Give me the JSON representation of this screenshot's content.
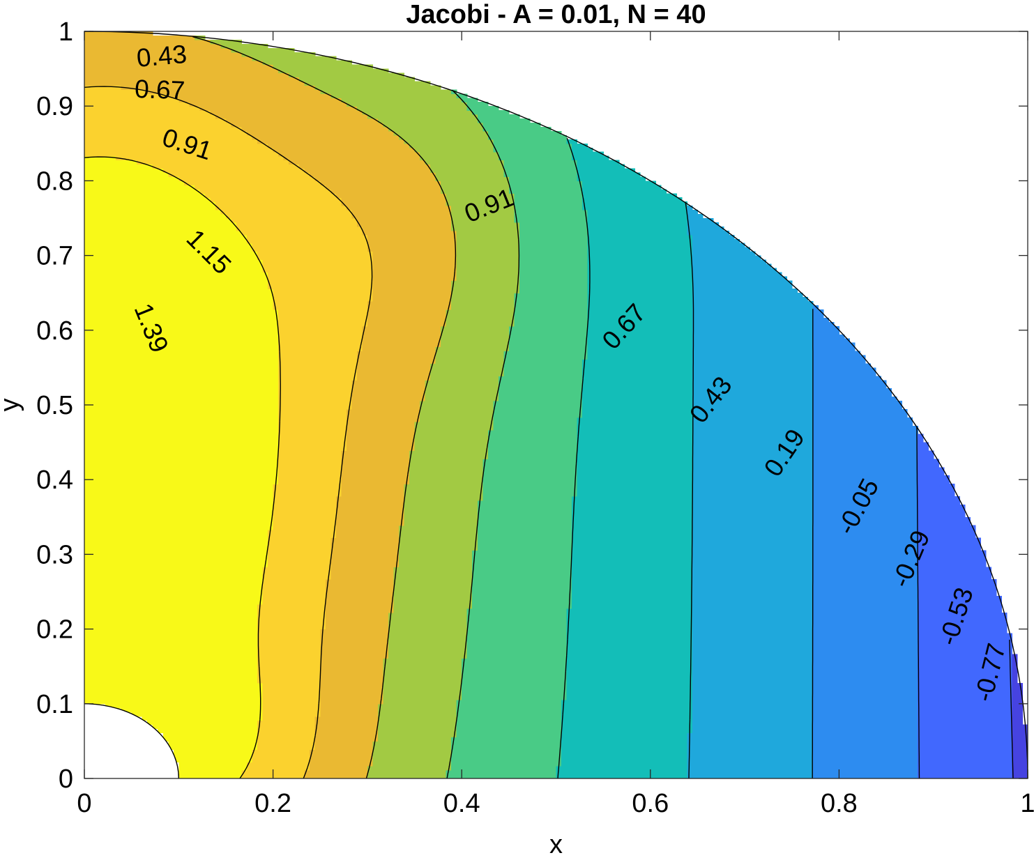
{
  "chart_data": {
    "type": "contour",
    "title": "Jacobi - A = 0.01, N = 40",
    "xlabel": "x",
    "ylabel": "y",
    "xlim": [
      0,
      1
    ],
    "ylim": [
      0,
      1
    ],
    "xticks": [
      {
        "value": 0,
        "label": "0"
      },
      {
        "value": 0.2,
        "label": "0.2"
      },
      {
        "value": 0.4,
        "label": "0.4"
      },
      {
        "value": 0.6,
        "label": "0.6"
      },
      {
        "value": 0.8,
        "label": "0.8"
      },
      {
        "value": 1,
        "label": "1"
      }
    ],
    "yticks": [
      {
        "value": 0,
        "label": "0"
      },
      {
        "value": 0.1,
        "label": "0.1"
      },
      {
        "value": 0.2,
        "label": "0.2"
      },
      {
        "value": 0.3,
        "label": "0.3"
      },
      {
        "value": 0.4,
        "label": "0.4"
      },
      {
        "value": 0.5,
        "label": "0.5"
      },
      {
        "value": 0.6,
        "label": "0.6"
      },
      {
        "value": 0.7,
        "label": "0.7"
      },
      {
        "value": 0.8,
        "label": "0.8"
      },
      {
        "value": 0.9,
        "label": "0.9"
      },
      {
        "value": 1,
        "label": "1"
      }
    ],
    "domain": {
      "shape": "annular quarter disk",
      "inner_radius": 0.1,
      "outer_radius": 1.0
    },
    "colormap": "parula",
    "levels": [
      -0.77,
      -0.53,
      -0.29,
      -0.05,
      0.19,
      0.43,
      0.67,
      0.91,
      1.15,
      1.39
    ],
    "level_colors": [
      {
        "min": -1.01,
        "max": -0.77,
        "color": "#3E26A8"
      },
      {
        "min": -0.77,
        "max": -0.53,
        "color": "#4643E1"
      },
      {
        "min": -0.53,
        "max": -0.29,
        "color": "#4168FE"
      },
      {
        "min": -0.29,
        "max": -0.05,
        "color": "#2D8CF0"
      },
      {
        "min": -0.05,
        "max": 0.19,
        "color": "#1FA8DC"
      },
      {
        "min": 0.19,
        "max": 0.43,
        "color": "#13BEB8"
      },
      {
        "min": 0.43,
        "max": 0.67,
        "color": "#49CB86"
      },
      {
        "min": 0.67,
        "max": 0.91,
        "color": "#A2CA43"
      },
      {
        "min": 0.91,
        "max": 1.15,
        "color": "#EAB932"
      },
      {
        "min": 1.15,
        "max": 1.39,
        "color": "#FBD22E"
      },
      {
        "min": 1.39,
        "max": 1.63,
        "color": "#F8F918"
      }
    ],
    "contour_labels": [
      {
        "text": "0.43",
        "x": 0.082,
        "y": 0.967,
        "rotation": -5
      },
      {
        "text": "0.67",
        "x": 0.08,
        "y": 0.922,
        "rotation": 2
      },
      {
        "text": "0.91",
        "x": 0.109,
        "y": 0.849,
        "rotation": 18
      },
      {
        "text": "0.91",
        "x": 0.429,
        "y": 0.767,
        "rotation": -22
      },
      {
        "text": "1.15",
        "x": 0.132,
        "y": 0.705,
        "rotation": 45
      },
      {
        "text": "1.39",
        "x": 0.071,
        "y": 0.603,
        "rotation": 68
      },
      {
        "text": "0.67",
        "x": 0.572,
        "y": 0.605,
        "rotation": -48
      },
      {
        "text": "0.43",
        "x": 0.664,
        "y": 0.507,
        "rotation": -52
      },
      {
        "text": "0.19",
        "x": 0.742,
        "y": 0.436,
        "rotation": -56
      },
      {
        "text": "-0.05",
        "x": 0.82,
        "y": 0.364,
        "rotation": -62
      },
      {
        "text": "-0.29",
        "x": 0.876,
        "y": 0.294,
        "rotation": -67
      },
      {
        "text": "-0.53",
        "x": 0.924,
        "y": 0.217,
        "rotation": -72
      },
      {
        "text": "-0.77",
        "x": 0.96,
        "y": 0.142,
        "rotation": -76
      }
    ]
  }
}
